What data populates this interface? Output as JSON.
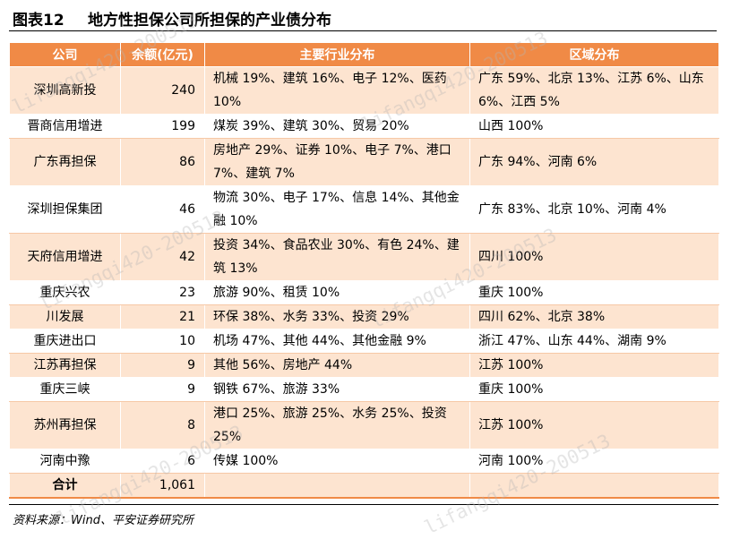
{
  "title": {
    "number": "图表12",
    "text": "地方性担保公司所担保的产业债分布"
  },
  "table": {
    "headers": [
      "公司",
      "余额(亿元)",
      "主要行业分布",
      "区域分布"
    ],
    "rows": [
      {
        "company": "深圳高新投",
        "amount": "240",
        "industry": "机械 19%、建筑 16%、电子 12%、医药 10%",
        "region": "广东 59%、北京 13%、江苏 6%、山东 6%、江西 5%"
      },
      {
        "company": "晋商信用增进",
        "amount": "199",
        "industry": "煤炭 39%、建筑 30%、贸易 20%",
        "region": "山西 100%"
      },
      {
        "company": "广东再担保",
        "amount": "86",
        "industry": "房地产 29%、证券 10%、电子 7%、港口 7%、建筑 7%",
        "region": "广东 94%、河南 6%"
      },
      {
        "company": "深圳担保集团",
        "amount": "46",
        "industry": "物流 30%、电子 17%、信息 14%、其他金融 10%",
        "region": "广东 83%、北京 10%、河南 4%"
      },
      {
        "company": "天府信用增进",
        "amount": "42",
        "industry": "投资 34%、食品农业 30%、有色 24%、建筑 13%",
        "region": "四川 100%"
      },
      {
        "company": "重庆兴农",
        "amount": "23",
        "industry": "旅游 90%、租赁 10%",
        "region": "重庆 100%"
      },
      {
        "company": "川发展",
        "amount": "21",
        "industry": "环保 38%、水务 33%、投资 29%",
        "region": "四川 62%、北京 38%"
      },
      {
        "company": "重庆进出口",
        "amount": "10",
        "industry": "机场 47%、其他 44%、其他金融 9%",
        "region": "浙江 47%、山东 44%、湖南 9%"
      },
      {
        "company": "江苏再担保",
        "amount": "9",
        "industry": "其他 56%、房地产 44%",
        "region": "江苏 100%"
      },
      {
        "company": "重庆三峡",
        "amount": "9",
        "industry": "钢铁 67%、旅游 33%",
        "region": "重庆 100%"
      },
      {
        "company": "苏州再担保",
        "amount": "8",
        "industry": "港口 25%、旅游 25%、水务 25%、投资 25%",
        "region": "江苏 100%"
      },
      {
        "company": "河南中豫",
        "amount": "6",
        "industry": "传媒 100%",
        "region": "河南 100%"
      }
    ],
    "total": {
      "label": "合计",
      "amount": "1,061"
    }
  },
  "source": "资料来源：Wind、平安证券研究所",
  "watermark": "lifangqi420-200513",
  "colors": {
    "header": "#f08a46",
    "band": "#fde4d0"
  }
}
